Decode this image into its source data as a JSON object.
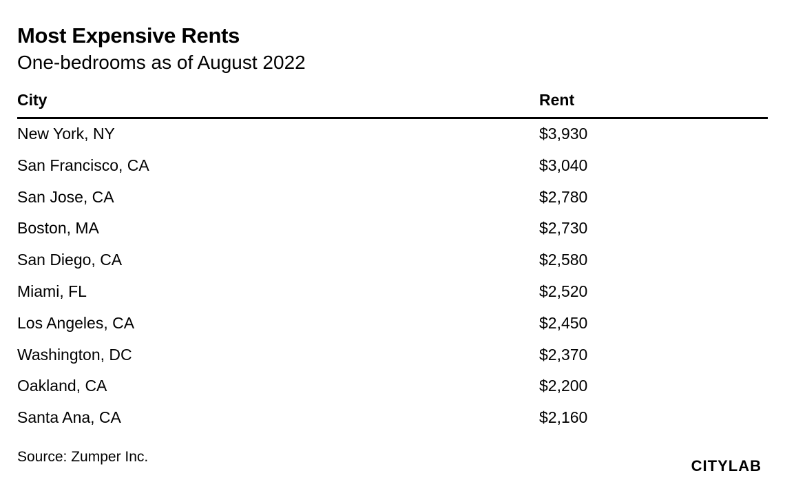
{
  "chart_data": {
    "type": "table",
    "title": "Most Expensive Rents",
    "subtitle": "One-bedrooms as of August 2022",
    "columns": [
      "City",
      "Rent"
    ],
    "rows": [
      {
        "city": "New York, NY",
        "rent": "$3,930",
        "value": 3930
      },
      {
        "city": "San Francisco, CA",
        "rent": "$3,040",
        "value": 3040
      },
      {
        "city": "San Jose, CA",
        "rent": "$2,780",
        "value": 2780
      },
      {
        "city": "Boston, MA",
        "rent": "$2,730",
        "value": 2730
      },
      {
        "city": "San Diego, CA",
        "rent": "$2,580",
        "value": 2580
      },
      {
        "city": "Miami, FL",
        "rent": "$2,520",
        "value": 2520
      },
      {
        "city": "Los Angeles, CA",
        "rent": "$2,450",
        "value": 2450
      },
      {
        "city": "Washington, DC",
        "rent": "$2,370",
        "value": 2370
      },
      {
        "city": "Oakland, CA",
        "rent": "$2,200",
        "value": 2200
      },
      {
        "city": "Santa Ana, CA",
        "rent": "$2,160",
        "value": 2160
      }
    ],
    "source": "Source: Zumper Inc."
  },
  "branding": {
    "logo_text": "CITYLAB"
  }
}
